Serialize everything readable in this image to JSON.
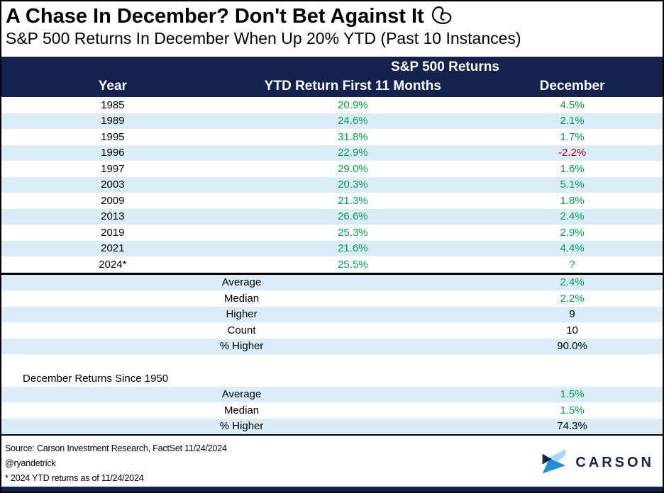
{
  "title": "A Chase In December? Don't Bet Against It",
  "title_emoji": "flexed-biceps",
  "subtitle": "S&P 500 Returns In December When Up 20% YTD (Past 10 Instances)",
  "chart_data": {
    "type": "table",
    "group_header": "S&P 500 Returns",
    "columns": [
      "Year",
      "YTD Return First 11 Months",
      "December"
    ],
    "rows": [
      {
        "year": "1985",
        "ytd": "20.9%",
        "ytd_color": "green",
        "december": "4.5%",
        "december_color": "green"
      },
      {
        "year": "1989",
        "ytd": "24.6%",
        "ytd_color": "green",
        "december": "2.1%",
        "december_color": "green"
      },
      {
        "year": "1995",
        "ytd": "31.8%",
        "ytd_color": "green",
        "december": "1.7%",
        "december_color": "green"
      },
      {
        "year": "1996",
        "ytd": "22.9%",
        "ytd_color": "green",
        "december": "-2.2%",
        "december_color": "red"
      },
      {
        "year": "1997",
        "ytd": "29.0%",
        "ytd_color": "green",
        "december": "1.6%",
        "december_color": "green"
      },
      {
        "year": "2003",
        "ytd": "20.3%",
        "ytd_color": "green",
        "december": "5.1%",
        "december_color": "green"
      },
      {
        "year": "2009",
        "ytd": "21.3%",
        "ytd_color": "green",
        "december": "1.8%",
        "december_color": "green"
      },
      {
        "year": "2013",
        "ytd": "26.6%",
        "ytd_color": "green",
        "december": "2.4%",
        "december_color": "green"
      },
      {
        "year": "2019",
        "ytd": "25.3%",
        "ytd_color": "green",
        "december": "2.9%",
        "december_color": "green"
      },
      {
        "year": "2021",
        "ytd": "21.6%",
        "ytd_color": "green",
        "december": "4.4%",
        "december_color": "green"
      },
      {
        "year": "2024*",
        "ytd": "25.5%",
        "ytd_color": "green",
        "december": "?",
        "december_color": "green"
      }
    ],
    "summary": [
      {
        "label": "Average",
        "value": "2.4%",
        "value_color": "green"
      },
      {
        "label": "Median",
        "value": "2.2%",
        "value_color": "green"
      },
      {
        "label": "Higher",
        "value": "9",
        "value_color": "black"
      },
      {
        "label": "Count",
        "value": "10",
        "value_color": "black"
      },
      {
        "label": "% Higher",
        "value": "90.0%",
        "value_color": "black"
      }
    ],
    "since_1950": {
      "heading": "December Returns Since 1950",
      "rows": [
        {
          "label": "Average",
          "value": "1.5%",
          "value_color": "green"
        },
        {
          "label": "Median",
          "value": "1.5%",
          "value_color": "green"
        },
        {
          "label": "% Higher",
          "value": "74.3%",
          "value_color": "black"
        }
      ]
    }
  },
  "footer": {
    "source": "Source: Carson Investment Research, FactSet 11/24/2024",
    "handle": "@ryandetrick",
    "footnote": "* 2024 YTD returns as of 11/24/2024",
    "logo_text": "CARSON",
    "logo_icon": "carson-chevron"
  },
  "colors": {
    "header_navy": "#14224E",
    "row_alt_blue": "#D9ECF8",
    "positive_green": "#00A24D",
    "negative_red": "#C00000",
    "logo_light_blue": "#A9D8F7",
    "logo_blue": "#1F8FE0"
  }
}
